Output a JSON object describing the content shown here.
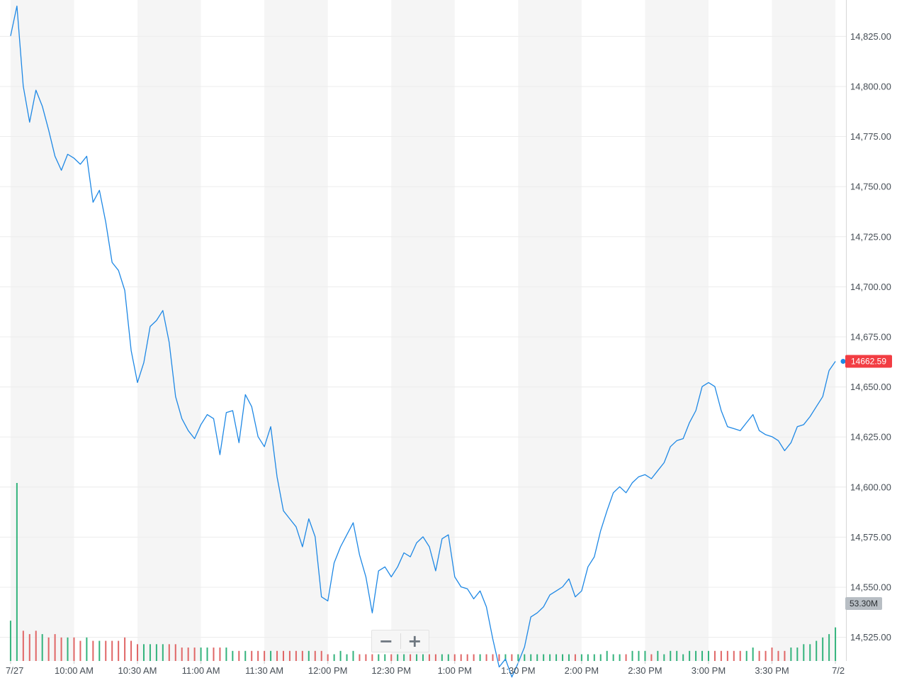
{
  "chart_data": {
    "type": "line",
    "title": "",
    "xlabel": "",
    "ylabel": "",
    "x_ticks": [
      "7/27",
      "10:00 AM",
      "10:30 AM",
      "11:00 AM",
      "11:30 AM",
      "12:00 PM",
      "12:30 PM",
      "1:00 PM",
      "1:30 PM",
      "2:00 PM",
      "2:30 PM",
      "3:00 PM",
      "3:30 PM",
      "7/2"
    ],
    "y_ticks": [
      "14,825.00",
      "14,800.00",
      "14,775.00",
      "14,750.00",
      "14,725.00",
      "14,700.00",
      "14,675.00",
      "14,650.00",
      "14,625.00",
      "14,600.00",
      "14,575.00",
      "14,550.00",
      "14,525.00"
    ],
    "y_tick_values": [
      14825,
      14800,
      14775,
      14750,
      14725,
      14700,
      14675,
      14650,
      14625,
      14600,
      14575,
      14550,
      14525
    ],
    "ylim": [
      14513,
      14843
    ],
    "x_time_range": [
      "09:25",
      "16:05"
    ],
    "grid": true,
    "last_price_label": "14662.59",
    "last_price": 14662.59,
    "volume_label": "53.30M",
    "colors": {
      "line": "#1e88e5",
      "band": "#f5f5f5",
      "price_badge": "#f23d43",
      "volume_badge": "#b8bec4",
      "volume_up": "#33b37c",
      "volume_down": "#e06666"
    },
    "series": [
      {
        "x": [
          "09:30",
          "09:33",
          "09:36",
          "09:39",
          "09:42",
          "09:45",
          "09:48",
          "09:51",
          "09:54",
          "09:57",
          "10:00",
          "10:03",
          "10:06",
          "10:09",
          "10:12",
          "10:15",
          "10:18",
          "10:21",
          "10:24",
          "10:27",
          "10:30",
          "10:33",
          "10:36",
          "10:39",
          "10:42",
          "10:45",
          "10:48",
          "10:51",
          "10:54",
          "10:57",
          "11:00",
          "11:03",
          "11:06",
          "11:09",
          "11:12",
          "11:15",
          "11:18",
          "11:21",
          "11:24",
          "11:27",
          "11:30",
          "11:33",
          "11:36",
          "11:39",
          "11:42",
          "11:45",
          "11:48",
          "11:51",
          "11:54",
          "11:57",
          "12:00",
          "12:03",
          "12:06",
          "12:09",
          "12:12",
          "12:15",
          "12:18",
          "12:21",
          "12:24",
          "12:27",
          "12:30",
          "12:33",
          "12:36",
          "12:39",
          "12:42",
          "12:45",
          "12:48",
          "12:51",
          "12:54",
          "12:57",
          "13:00",
          "13:03",
          "13:06",
          "13:09",
          "13:12",
          "13:15",
          "13:18",
          "13:21",
          "13:24",
          "13:27",
          "13:30",
          "13:33",
          "13:36",
          "13:39",
          "13:42",
          "13:45",
          "13:48",
          "13:51",
          "13:54",
          "13:57",
          "14:00",
          "14:03",
          "14:06",
          "14:09",
          "14:12",
          "14:15",
          "14:18",
          "14:21",
          "14:24",
          "14:27",
          "14:30",
          "14:33",
          "14:36",
          "14:39",
          "14:42",
          "14:45",
          "14:48",
          "14:51",
          "14:54",
          "14:57",
          "15:00",
          "15:03",
          "15:06",
          "15:09",
          "15:12",
          "15:15",
          "15:18",
          "15:21",
          "15:24",
          "15:27",
          "15:30",
          "15:33",
          "15:36",
          "15:39",
          "15:42",
          "15:45",
          "15:48",
          "15:51",
          "15:54",
          "15:57",
          "16:00"
        ],
        "values": [
          14825,
          14840,
          14800,
          14782,
          14798,
          14790,
          14778,
          14765,
          14758,
          14766,
          14764,
          14761,
          14765,
          14742,
          14748,
          14732,
          14712,
          14708,
          14698,
          14668,
          14652,
          14662,
          14680,
          14683,
          14688,
          14672,
          14645,
          14634,
          14628,
          14624,
          14631,
          14636,
          14634,
          14616,
          14637,
          14638,
          14622,
          14646,
          14640,
          14625,
          14620,
          14630,
          14605,
          14588,
          14584,
          14580,
          14570,
          14584,
          14575,
          14545,
          14543,
          14562,
          14570,
          14576,
          14582,
          14566,
          14555,
          14537,
          14558,
          14560,
          14555,
          14560,
          14567,
          14565,
          14572,
          14575,
          14570,
          14558,
          14574,
          14576,
          14555,
          14550,
          14549,
          14544,
          14548,
          14540,
          14524,
          14510,
          14514,
          14505,
          14512,
          14520,
          14535,
          14537,
          14540,
          14546,
          14548,
          14550,
          14554,
          14545,
          14548,
          14560,
          14565,
          14578,
          14588,
          14597,
          14600,
          14597,
          14602,
          14605,
          14606,
          14604,
          14608,
          14612,
          14620,
          14623,
          14624,
          14632,
          14638,
          14650,
          14652,
          14650,
          14638,
          14630,
          14629,
          14628,
          14632,
          14636,
          14628,
          14626,
          14625,
          14623,
          14618,
          14622,
          14630,
          14631,
          14635,
          14640,
          14645,
          14658,
          14662.59
        ]
      }
    ],
    "volume": {
      "x": [
        "09:30",
        "09:33",
        "09:36",
        "09:39",
        "09:42",
        "09:45",
        "09:48",
        "09:51",
        "09:54",
        "09:57",
        "10:00",
        "10:03",
        "10:06",
        "10:09",
        "10:12",
        "10:15",
        "10:18",
        "10:21",
        "10:24",
        "10:27",
        "10:30",
        "10:33",
        "10:36",
        "10:39",
        "10:42",
        "10:45",
        "10:48",
        "10:51",
        "10:54",
        "10:57",
        "11:00",
        "11:03",
        "11:06",
        "11:09",
        "11:12",
        "11:15",
        "11:18",
        "11:21",
        "11:24",
        "11:27",
        "11:30",
        "11:33",
        "11:36",
        "11:39",
        "11:42",
        "11:45",
        "11:48",
        "11:51",
        "11:54",
        "11:57",
        "12:00",
        "12:03",
        "12:06",
        "12:09",
        "12:12",
        "12:15",
        "12:18",
        "12:21",
        "12:24",
        "12:27",
        "12:30",
        "12:33",
        "12:36",
        "12:39",
        "12:42",
        "12:45",
        "12:48",
        "12:51",
        "12:54",
        "12:57",
        "13:00",
        "13:03",
        "13:06",
        "13:09",
        "13:12",
        "13:15",
        "13:18",
        "13:21",
        "13:24",
        "13:27",
        "13:30",
        "13:33",
        "13:36",
        "13:39",
        "13:42",
        "13:45",
        "13:48",
        "13:51",
        "13:54",
        "13:57",
        "14:00",
        "14:03",
        "14:06",
        "14:09",
        "14:12",
        "14:15",
        "14:18",
        "14:21",
        "14:24",
        "14:27",
        "14:30",
        "14:33",
        "14:36",
        "14:39",
        "14:42",
        "14:45",
        "14:48",
        "14:51",
        "14:54",
        "14:57",
        "15:00",
        "15:03",
        "15:06",
        "15:09",
        "15:12",
        "15:15",
        "15:18",
        "15:21",
        "15:24",
        "15:27",
        "15:30",
        "15:33",
        "15:36",
        "15:39",
        "15:42",
        "15:45",
        "15:48",
        "15:51",
        "15:54",
        "15:57",
        "16:00"
      ],
      "values": [
        12,
        53,
        9,
        8,
        9,
        8,
        7,
        8,
        7,
        7,
        7,
        6,
        7,
        6,
        6,
        6,
        6,
        6,
        7,
        6,
        5,
        5,
        5,
        5,
        5,
        5,
        5,
        4,
        4,
        4,
        4,
        4,
        4,
        4,
        4,
        3,
        3,
        3,
        3,
        3,
        3,
        3,
        3,
        3,
        3,
        3,
        3,
        3,
        3,
        3,
        2,
        2,
        3,
        2,
        3,
        2,
        2,
        2,
        2,
        2,
        2,
        2,
        2,
        2,
        2,
        2,
        2,
        2,
        2,
        2,
        2,
        2,
        2,
        2,
        2,
        2,
        2,
        2,
        2,
        2,
        2,
        2,
        2,
        2,
        2,
        2,
        2,
        2,
        2,
        2,
        2,
        2,
        2,
        2,
        3,
        2,
        2,
        2,
        3,
        3,
        3,
        2,
        3,
        2,
        3,
        3,
        2,
        3,
        3,
        3,
        3,
        3,
        3,
        3,
        3,
        3,
        3,
        4,
        3,
        3,
        4,
        3,
        3,
        4,
        4,
        5,
        5,
        6,
        7,
        8,
        10
      ],
      "direction": [
        "up",
        "up",
        "down",
        "down",
        "down",
        "up",
        "down",
        "down",
        "down",
        "up",
        "down",
        "down",
        "up",
        "down",
        "up",
        "down",
        "down",
        "down",
        "down",
        "down",
        "down",
        "up",
        "up",
        "up",
        "up",
        "down",
        "down",
        "down",
        "down",
        "down",
        "up",
        "up",
        "down",
        "down",
        "up",
        "up",
        "down",
        "up",
        "down",
        "down",
        "down",
        "up",
        "down",
        "down",
        "down",
        "down",
        "down",
        "up",
        "down",
        "down",
        "down",
        "up",
        "up",
        "up",
        "up",
        "down",
        "down",
        "down",
        "up",
        "up",
        "down",
        "up",
        "up",
        "down",
        "up",
        "up",
        "down",
        "down",
        "up",
        "up",
        "down",
        "down",
        "down",
        "down",
        "up",
        "down",
        "down",
        "down",
        "up",
        "down",
        "up",
        "up",
        "up",
        "up",
        "up",
        "up",
        "up",
        "up",
        "up",
        "down",
        "up",
        "up",
        "up",
        "up",
        "up",
        "up",
        "up",
        "down",
        "up",
        "up",
        "up",
        "down",
        "up",
        "up",
        "up",
        "up",
        "up",
        "up",
        "up",
        "up",
        "up",
        "down",
        "down",
        "down",
        "down",
        "down",
        "up",
        "up",
        "down",
        "down",
        "down",
        "down",
        "down",
        "up",
        "up",
        "up",
        "up",
        "up",
        "up",
        "up",
        "up"
      ]
    }
  }
}
